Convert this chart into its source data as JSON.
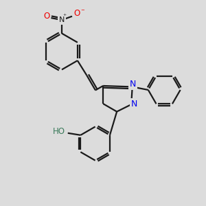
{
  "bg_color": "#dcdcdc",
  "bond_color": "#1a1a1a",
  "nitrogen_color": "#0000ee",
  "oxygen_color": "#ee0000",
  "ho_color": "#3a7a5a",
  "bond_width": 1.6,
  "fig_size": [
    3.0,
    3.0
  ],
  "dpi": 100,
  "xlim": [
    0,
    10
  ],
  "ylim": [
    0,
    10
  ]
}
